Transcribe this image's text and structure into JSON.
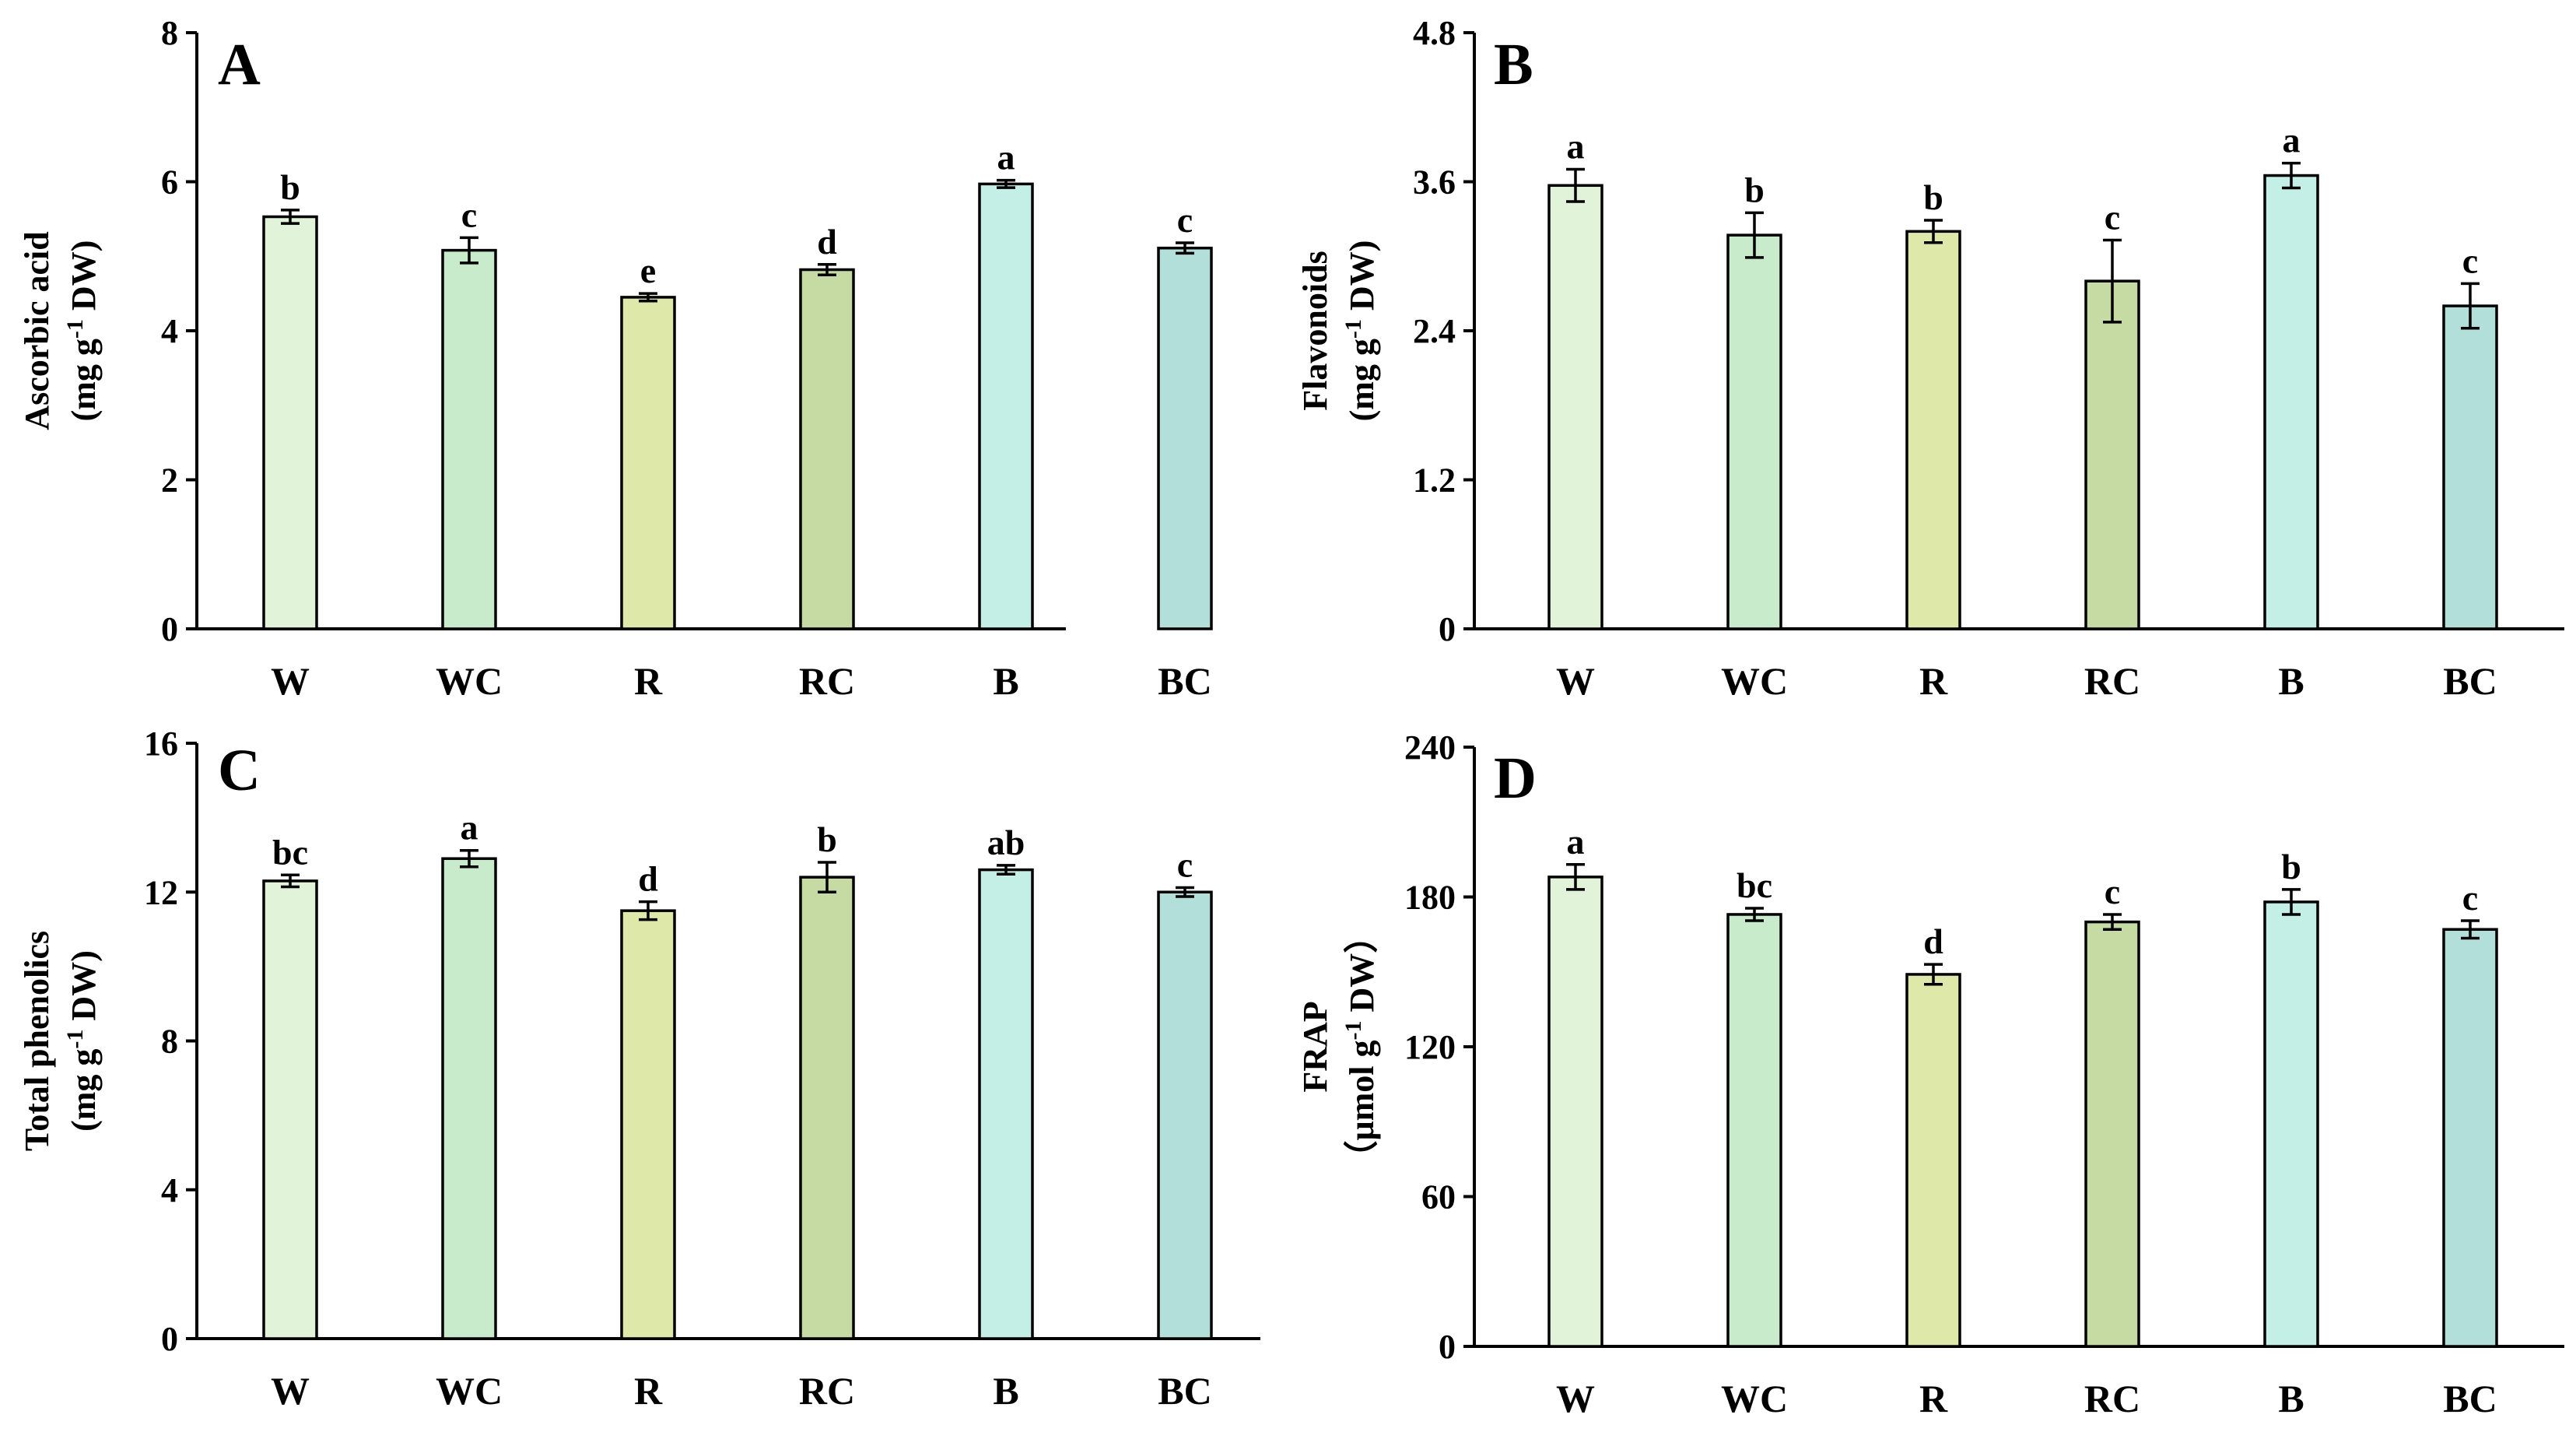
{
  "colors": {
    "W": "#e1f4d9",
    "WC": "#c7ebcb",
    "R": "#dde8a9",
    "RC": "#c6dba3",
    "B": "#c4efe7",
    "BC": "#b3dfdb"
  },
  "chart_data": [
    {
      "type": "bar",
      "panel": "A",
      "categories": [
        "W",
        "WC",
        "R",
        "RC",
        "B",
        "BC"
      ],
      "values": [
        5.53,
        5.08,
        4.45,
        4.82,
        5.97,
        5.11
      ],
      "errors": [
        0.09,
        0.17,
        0.05,
        0.07,
        0.05,
        0.07
      ],
      "significance": [
        "b",
        "c",
        "e",
        "d",
        "a",
        "c"
      ],
      "ylabel_line1": "Ascorbic acid",
      "ylabel_line2_pre": "(mg g",
      "ylabel_sup": "-1",
      "ylabel_line2_post": " DW)",
      "ylim": [
        0,
        8
      ],
      "yticks": [
        "0",
        "2",
        "4",
        "6",
        "8"
      ],
      "title": ""
    },
    {
      "type": "bar",
      "panel": "B",
      "categories": [
        "W",
        "WC",
        "R",
        "RC",
        "B",
        "BC"
      ],
      "values": [
        3.57,
        3.17,
        3.2,
        2.8,
        3.65,
        2.6
      ],
      "errors": [
        0.13,
        0.18,
        0.09,
        0.33,
        0.1,
        0.18
      ],
      "significance": [
        "a",
        "b",
        "b",
        "c",
        "a",
        "c"
      ],
      "ylabel_line1": "Flavonoids",
      "ylabel_line2_pre": "(mg g",
      "ylabel_sup": "-1",
      "ylabel_line2_post": " DW)",
      "ylim": [
        0,
        4.8
      ],
      "yticks": [
        "0",
        "1.2",
        "2.4",
        "3.6",
        "4.8"
      ],
      "title": ""
    },
    {
      "type": "bar",
      "panel": "C",
      "categories": [
        "W",
        "WC",
        "R",
        "RC",
        "B",
        "BC"
      ],
      "values": [
        12.3,
        12.9,
        11.5,
        12.4,
        12.6,
        12.0
      ],
      "errors": [
        0.16,
        0.22,
        0.24,
        0.4,
        0.12,
        0.12
      ],
      "significance": [
        "bc",
        "a",
        "d",
        "b",
        "ab",
        "c"
      ],
      "ylabel_line1": "Total phenolics",
      "ylabel_line2_pre": "(mg g",
      "ylabel_sup": "-1",
      "ylabel_line2_post": " DW)",
      "ylim": [
        0,
        16
      ],
      "yticks": [
        "0",
        "4",
        "8",
        "12",
        "16"
      ],
      "title": ""
    },
    {
      "type": "bar",
      "panel": "D",
      "categories": [
        "W",
        "WC",
        "R",
        "RC",
        "B",
        "BC"
      ],
      "values": [
        188,
        173,
        149,
        170,
        178,
        167
      ],
      "errors": [
        5,
        2.5,
        4,
        3,
        5,
        3.5
      ],
      "significance": [
        "a",
        "bc",
        "d",
        "c",
        "b",
        "c"
      ],
      "ylabel_line1": "FRAP",
      "ylabel_line2_pre": "（μmol g",
      "ylabel_sup": "-1",
      "ylabel_line2_post": " DW）",
      "ylim": [
        0,
        240
      ],
      "yticks": [
        "0",
        "60",
        "120",
        "180",
        "240"
      ],
      "title": ""
    }
  ]
}
